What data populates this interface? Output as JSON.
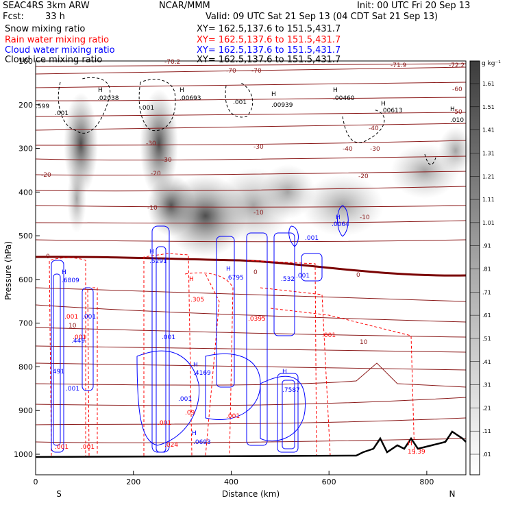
{
  "header": {
    "model": "SEAC4RS  3km ARW",
    "org": "NCAR/MMM",
    "init": "Init: 00 UTC Fri 20 Sep 13",
    "fcst_label": "Fcst:",
    "fcst_value": "33 h",
    "valid": "Valid: 09 UTC Sat 21 Sep 13 (04 CDT Sat 21 Sep 13)"
  },
  "fields": [
    {
      "name": "Snow mixing ratio",
      "xy": "XY=  162.5,137.6 to 151.5,431.7",
      "color": "#000000"
    },
    {
      "name": "Rain water mixing ratio",
      "xy": "XY=  162.5,137.6 to 151.5,431.7",
      "color": "#ff0000"
    },
    {
      "name": "Cloud water mixing ratio",
      "xy": "XY=  162.5,137.6 to 151.5,431.7",
      "color": "#0000ff"
    },
    {
      "name": "Cloud ice mixing ratio",
      "xy": "XY=  162.5,137.6 to 151.5,431.7",
      "color": "#000000"
    }
  ],
  "chart_data": {
    "type": "heatmap",
    "xlabel": "Distance (km)",
    "ylabel": "Pressure (hPa)",
    "xlim": [
      0,
      880
    ],
    "ylim": [
      1000,
      100
    ],
    "x_ticks": [
      "0",
      "200",
      "400",
      "600",
      "800"
    ],
    "y_ticks": [
      "100",
      "200",
      "300",
      "400",
      "500",
      "600",
      "700",
      "800",
      "900",
      "1000"
    ],
    "endpoints": {
      "left": "S",
      "right": "N"
    },
    "colorbar": {
      "unit": "g kg⁻¹",
      "levels": [
        "1.61",
        "1.51",
        "1.41",
        "1.31",
        "1.21",
        "1.11",
        "1.01",
        ".91",
        ".81",
        ".71",
        ".61",
        ".51",
        ".41",
        ".31",
        ".21",
        ".11",
        ".01"
      ]
    },
    "temperature_labels": [
      "-72.2",
      "-71.9",
      "-70.2",
      "-70",
      "-70",
      "-60",
      "-50",
      "-40",
      "-40",
      "-30",
      "-30",
      "-30",
      "-30",
      "-20",
      "-20",
      "-20",
      "-10",
      "-10",
      "-10",
      "0",
      "0",
      "0",
      "10",
      "10"
    ],
    "snow_labels": [
      "H",
      ".02038",
      ".001",
      "H",
      ".00693",
      ".001",
      "H",
      ".00939",
      "H",
      ".00460",
      "H",
      ".00613",
      "H",
      ".010",
      ".599",
      ".001"
    ],
    "rain_labels": [
      "H",
      ".305",
      ".001",
      ".001",
      ".001",
      ".001",
      ".001",
      ".024",
      ".0395",
      ".001",
      ".001",
      "H",
      "19.39",
      ".09"
    ],
    "cloud_labels": [
      "H",
      ".6809",
      "H",
      ".6795",
      ".532",
      "H",
      ".0064",
      ".001",
      ".001",
      ".001",
      ".001",
      ".001",
      "H",
      ".5291",
      ".449",
      ".491",
      "H",
      ".4169",
      "H",
      ".7587",
      "H",
      ".0693",
      ".001"
    ]
  },
  "colors": {
    "snow_shading": "#555555",
    "temperature": "#8b1a1a",
    "freezing_line": "#7a0000",
    "rain": "#ff0000",
    "cloud": "#0000ff",
    "terrain": "#000000"
  }
}
